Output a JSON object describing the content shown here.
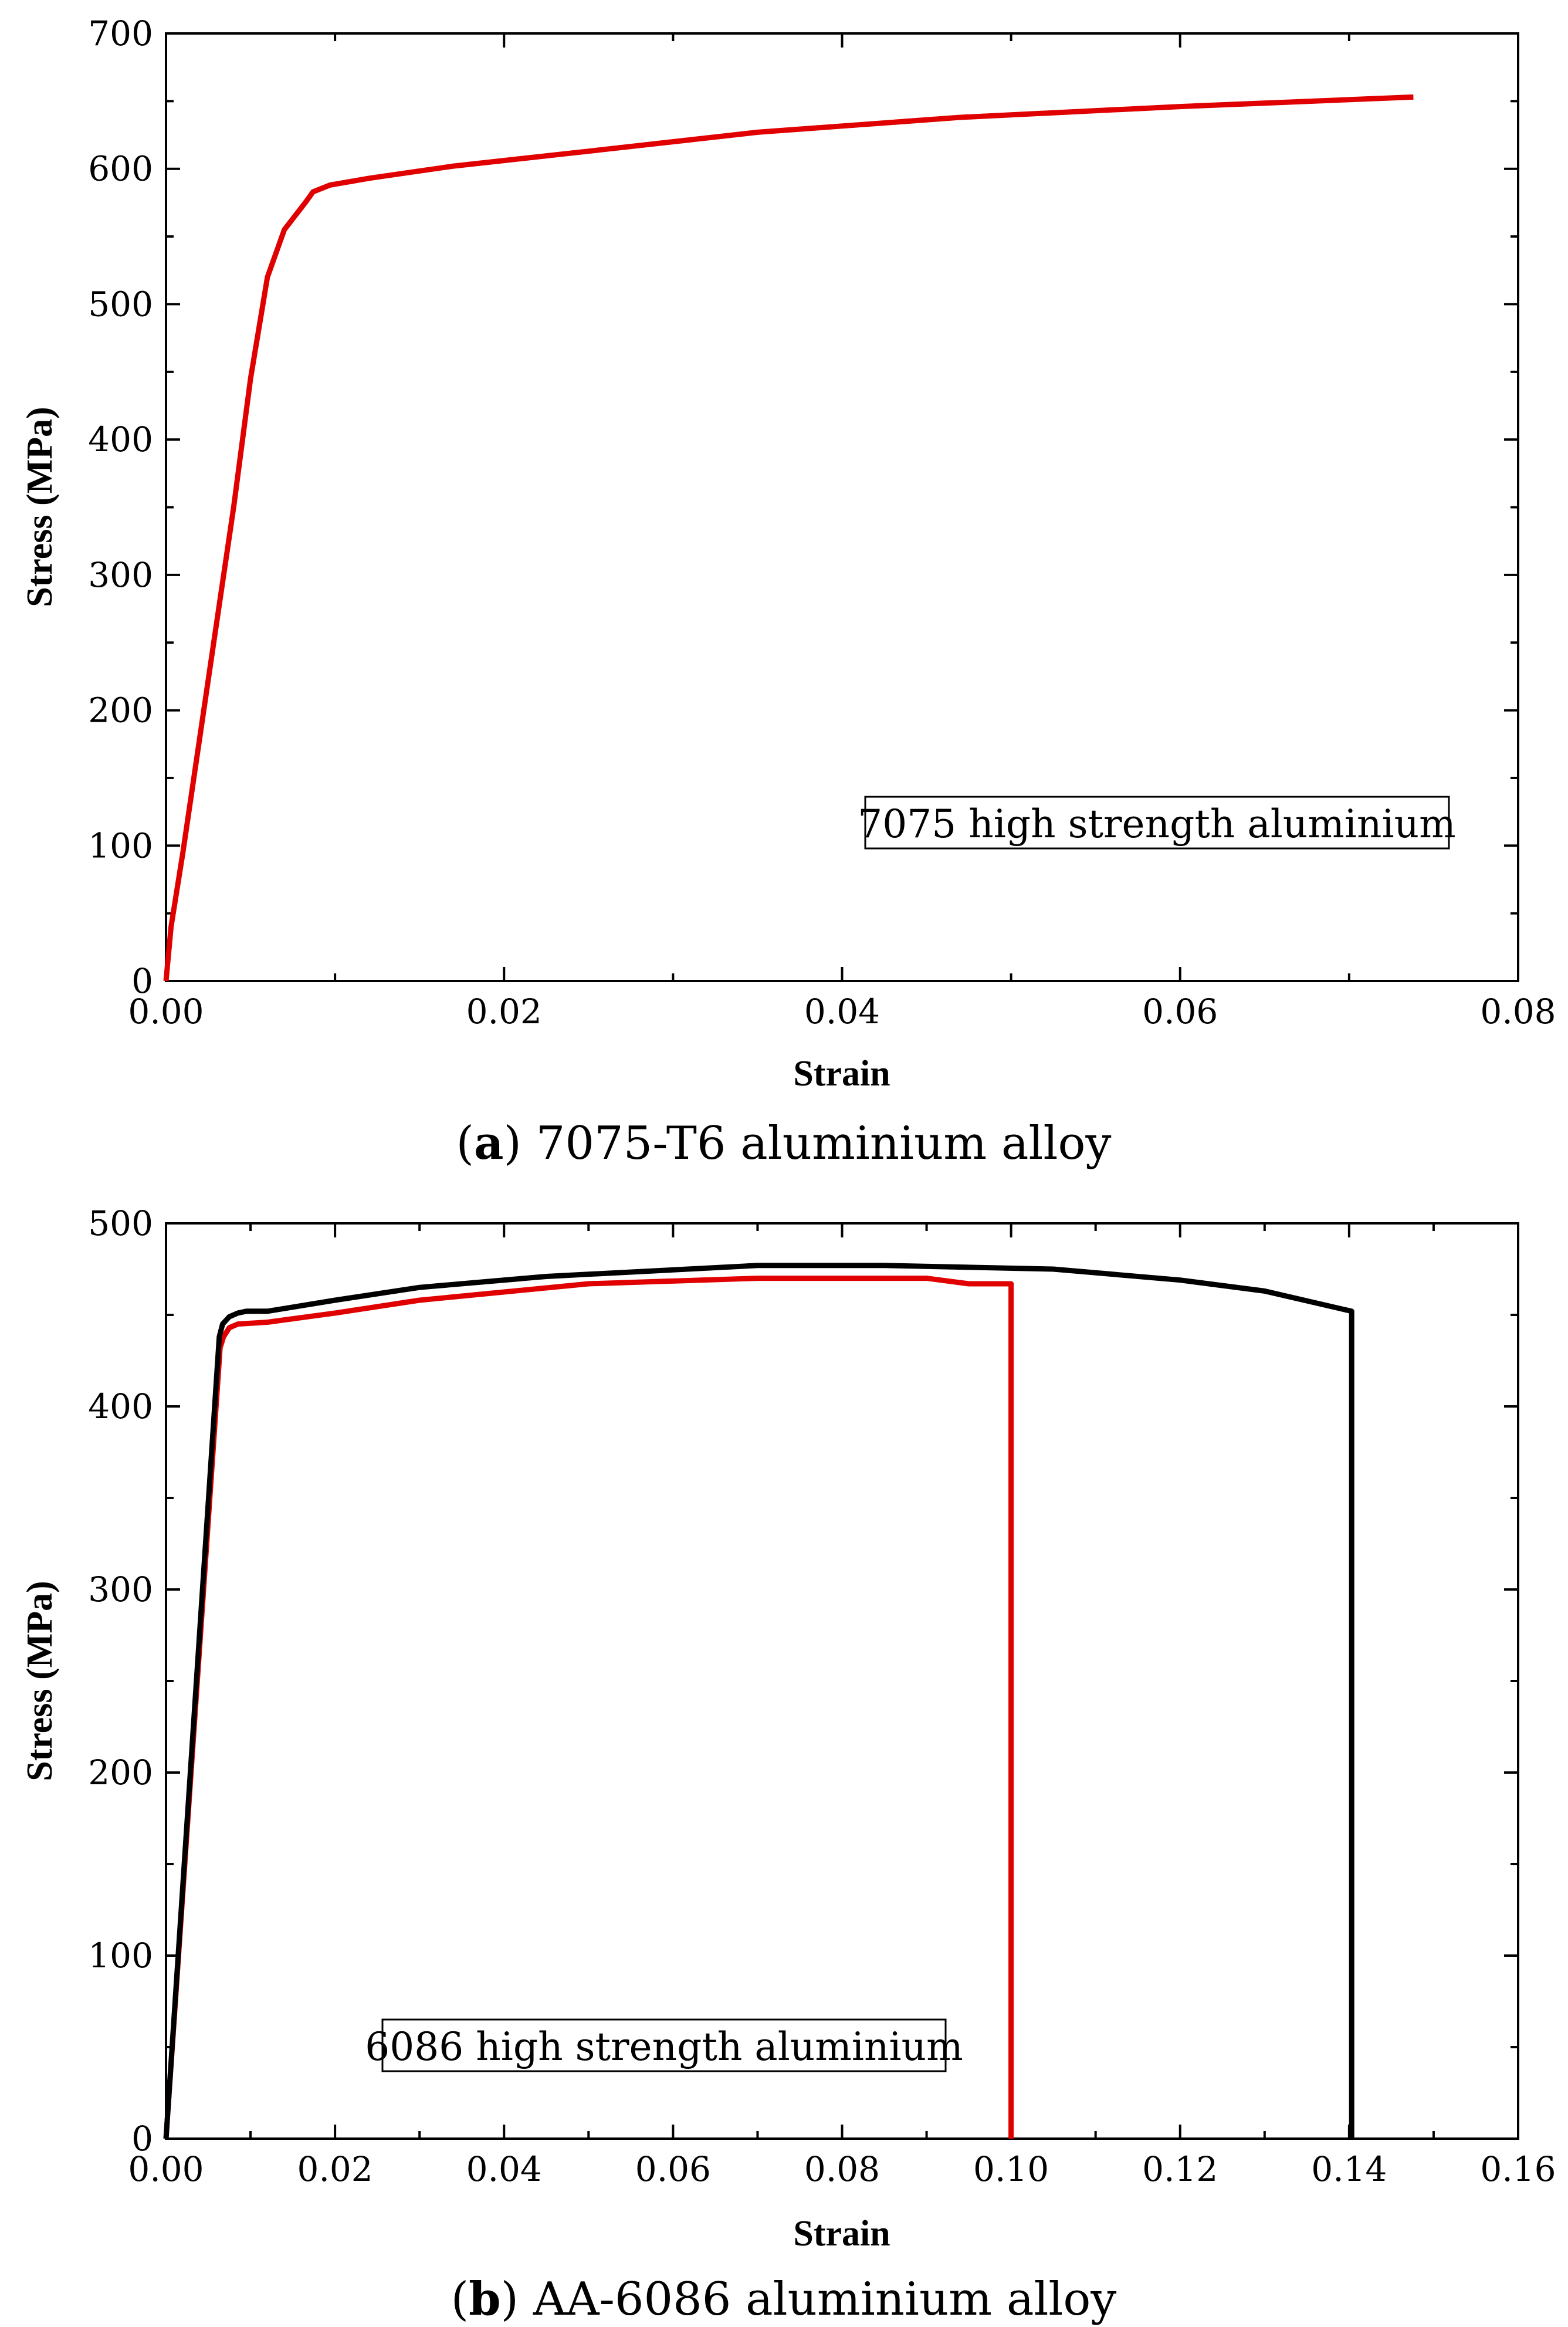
{
  "chart_data": [
    {
      "type": "line",
      "panel": "a",
      "caption_letter": "a",
      "caption_text": "7075-T6 aluminium alloy",
      "xlabel": "Strain",
      "ylabel": "Stress (MPa)",
      "xlim": [
        0,
        0.08
      ],
      "ylim": [
        0,
        700
      ],
      "x_ticks": [
        0.0,
        0.02,
        0.04,
        0.06,
        0.08
      ],
      "x_tick_labels": [
        "0.00",
        "0.02",
        "0.04",
        "0.06",
        "0.08"
      ],
      "y_ticks": [
        0,
        100,
        200,
        300,
        400,
        500,
        600,
        700
      ],
      "y_tick_labels": [
        "0",
        "100",
        "200",
        "300",
        "400",
        "500",
        "600",
        "700"
      ],
      "annotation": "7075 high strength aluminium",
      "grid": false,
      "series": [
        {
          "color": "#e00000",
          "x": [
            0.0,
            0.0003,
            0.001,
            0.002,
            0.003,
            0.004,
            0.005,
            0.006,
            0.007,
            0.0083,
            0.0087,
            0.0097,
            0.012,
            0.017,
            0.025,
            0.035,
            0.047,
            0.06,
            0.0738
          ],
          "y": [
            0,
            40,
            95,
            180,
            265,
            350,
            445,
            520,
            555,
            576,
            583,
            588,
            593,
            602,
            613,
            627,
            638,
            646,
            653
          ]
        }
      ]
    },
    {
      "type": "line",
      "panel": "b",
      "caption_letter": "b",
      "caption_text": "AA-6086 aluminium alloy",
      "xlabel": "Strain",
      "ylabel": "Stress (MPa)",
      "xlim": [
        0,
        0.16
      ],
      "ylim": [
        0,
        500
      ],
      "x_ticks": [
        0.0,
        0.02,
        0.04,
        0.06,
        0.08,
        0.1,
        0.12,
        0.14,
        0.16
      ],
      "x_tick_labels": [
        "0.00",
        "0.02",
        "0.04",
        "0.06",
        "0.08",
        "0.10",
        "0.12",
        "0.14",
        "0.16"
      ],
      "y_ticks": [
        0,
        100,
        200,
        300,
        400,
        500
      ],
      "y_tick_labels": [
        "0",
        "100",
        "200",
        "300",
        "400",
        "500"
      ],
      "annotation": "6086 high strength aluminium",
      "grid": false,
      "series": [
        {
          "color": "#e00000",
          "x": [
            0.0,
            0.0064,
            0.0068,
            0.0075,
            0.0085,
            0.012,
            0.02,
            0.03,
            0.05,
            0.07,
            0.09,
            0.095,
            0.1,
            0.1
          ],
          "y": [
            0,
            432,
            438,
            443,
            445,
            446,
            451,
            458,
            467,
            470,
            470,
            467,
            467,
            0
          ]
        },
        {
          "color": "#000000",
          "x": [
            0.0,
            0.0063,
            0.0067,
            0.0075,
            0.0085,
            0.0095,
            0.012,
            0.02,
            0.03,
            0.045,
            0.07,
            0.085,
            0.105,
            0.12,
            0.13,
            0.1403,
            0.1403
          ],
          "y": [
            0,
            438,
            445,
            449,
            451,
            452,
            452,
            458,
            465,
            471,
            477,
            477,
            475,
            469,
            463,
            452,
            0
          ]
        }
      ]
    }
  ]
}
